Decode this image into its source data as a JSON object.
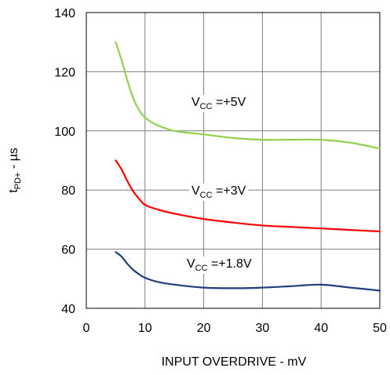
{
  "chart_data": {
    "type": "line",
    "xlabel": "INPUT OVERDRIVE - mV",
    "ylabel": {
      "main": "t",
      "sub": "PD+",
      "rest": " - µs"
    },
    "xlim": [
      0,
      50
    ],
    "ylim": [
      40,
      140
    ],
    "x_ticks": [
      "0",
      "10",
      "20",
      "30",
      "40",
      "50"
    ],
    "y_ticks": [
      "40",
      "60",
      "80",
      "100",
      "120",
      "140"
    ],
    "grid": true,
    "series": [
      {
        "name": "VCC =+5V",
        "label": {
          "main": "V",
          "sub": "CC",
          "rest": " =+5V"
        },
        "color": "#92d050",
        "x": [
          5,
          6,
          7,
          8,
          9,
          10,
          12,
          15,
          20,
          25,
          30,
          35,
          40,
          45,
          50
        ],
        "y": [
          130,
          124,
          117,
          111,
          107,
          104.5,
          102,
          100,
          98.8,
          97.6,
          97,
          97,
          97,
          96,
          94
        ]
      },
      {
        "name": "VCC =+3V",
        "label": {
          "main": "V",
          "sub": "CC",
          "rest": " =+3V"
        },
        "color": "#ff0000",
        "x": [
          5,
          6,
          7,
          8,
          9,
          10,
          12,
          15,
          20,
          25,
          30,
          35,
          40,
          45,
          50
        ],
        "y": [
          90,
          87,
          83,
          79.5,
          77,
          75,
          73.5,
          72,
          70.2,
          69,
          68,
          67.5,
          67,
          66.5,
          66
        ]
      },
      {
        "name": "VCC =+1.8V",
        "label": {
          "main": "V",
          "sub": "CC",
          "rest": " =+1.8V"
        },
        "color": "#1f3f7f",
        "x": [
          5,
          6,
          7,
          8,
          9,
          10,
          12,
          15,
          20,
          25,
          30,
          35,
          40,
          45,
          50
        ],
        "y": [
          59,
          57.5,
          55,
          53,
          51.5,
          50.3,
          49,
          48,
          47,
          46.8,
          47,
          47.5,
          48,
          47,
          46
        ]
      }
    ]
  }
}
